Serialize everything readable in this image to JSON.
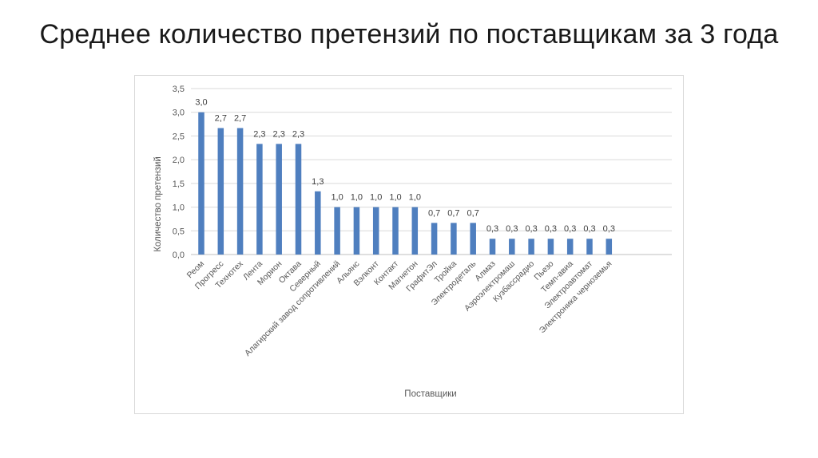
{
  "slide": {
    "title": "Среднее количество претензий по поставщикам за 3 года"
  },
  "colors": {
    "bar": "#4f7fbf",
    "grid": "#d9d9d9",
    "text": "#595959"
  },
  "chart_data": {
    "type": "bar",
    "title": "",
    "xlabel": "Поставщики",
    "ylabel": "Количество претензий",
    "ylim": [
      0,
      3.5
    ],
    "yticks": [
      "0,0",
      "0,5",
      "1,0",
      "1,5",
      "2,0",
      "2,5",
      "3,0",
      "3,5"
    ],
    "grid": true,
    "legend": "none",
    "data_labels": true,
    "categories": [
      "Реом",
      "Прогресс",
      "Технотех",
      "Лента",
      "Морион",
      "Октава",
      "Северный",
      "Алагирский завод сопротивлений",
      "Альянс",
      "Вэлконт",
      "Контакт",
      "Магнетон",
      "ГрафитЭл",
      "Тройка",
      "Электродеталь",
      "Алмаз",
      "Аэроэлектромаш",
      "Кузбассрадио",
      "Пьезо",
      "Темп-авиа",
      "Электроавтомат",
      "Электроника черноземья"
    ],
    "values": [
      3.0,
      2.7,
      2.7,
      2.3,
      2.3,
      2.3,
      1.3,
      1.0,
      1.0,
      1.0,
      1.0,
      1.0,
      0.7,
      0.7,
      0.7,
      0.3,
      0.3,
      0.3,
      0.3,
      0.3,
      0.3,
      0.3
    ],
    "value_labels": [
      "3,0",
      "2,7",
      "2,7",
      "2,3",
      "2,3",
      "2,3",
      "1,3",
      "1,0",
      "1,0",
      "1,0",
      "1,0",
      "1,0",
      "0,7",
      "0,7",
      "0,7",
      "0,3",
      "0,3",
      "0,3",
      "0,3",
      "0,3",
      "0,3",
      "0,3"
    ],
    "bar_heights_exact": [
      3.0,
      2.667,
      2.667,
      2.333,
      2.333,
      2.333,
      1.333,
      1.0,
      1.0,
      1.0,
      1.0,
      1.0,
      0.667,
      0.667,
      0.667,
      0.333,
      0.333,
      0.333,
      0.333,
      0.333,
      0.333,
      0.333
    ]
  }
}
